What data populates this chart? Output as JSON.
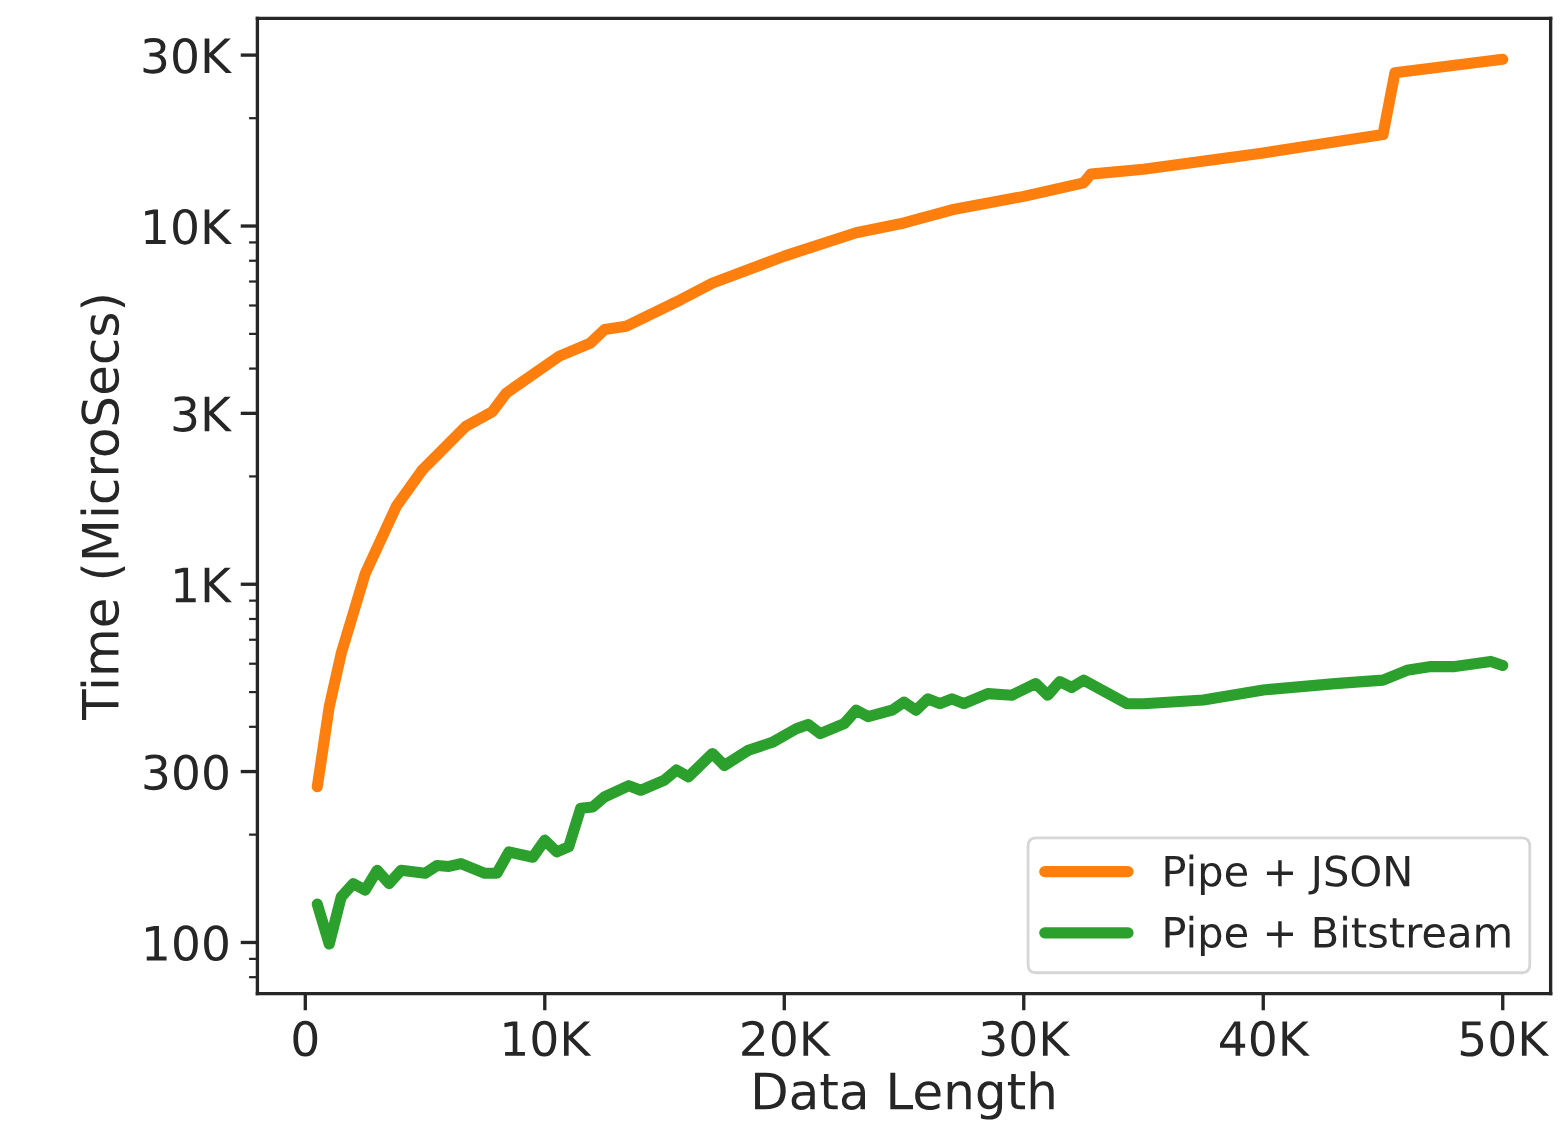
{
  "chart_data": {
    "type": "line",
    "xlabel": "Data Length",
    "ylabel": "Time (MicroSecs)",
    "log": "y",
    "grid": false,
    "legend": "bottom right",
    "xlim": [
      -2000,
      52000
    ],
    "xticks": [
      {
        "value": 0,
        "label": "0"
      },
      {
        "value": 10000,
        "label": "10K"
      },
      {
        "value": 20000,
        "label": "20K"
      },
      {
        "value": 30000,
        "label": "30K"
      },
      {
        "value": 40000,
        "label": "40K"
      },
      {
        "value": 50000,
        "label": "50K"
      }
    ],
    "ylim": [
      72,
      38000
    ],
    "yticks": [
      100,
      300,
      {
        "value": 1000,
        "label": "1K"
      },
      {
        "value": 3000,
        "label": "3K"
      },
      {
        "value": 10000,
        "label": "10K"
      },
      {
        "value": 30000,
        "label": "30K"
      }
    ],
    "series": [
      {
        "name": "Pipe + JSON",
        "color": "#ff7f0e",
        "x": [
          500,
          1000,
          1500,
          2500,
          3800,
          4900,
          6700,
          7800,
          8400,
          10600,
          11900,
          12500,
          13400,
          15700,
          17000,
          20000,
          23000,
          25000,
          27000,
          30000,
          32500,
          32800,
          35000,
          40000,
          45000,
          45500,
          50000
        ],
        "values": [
          272,
          455,
          641,
          1070,
          1650,
          2090,
          2760,
          3030,
          3420,
          4330,
          4710,
          5140,
          5250,
          6240,
          6930,
          8240,
          9580,
          10200,
          11100,
          12100,
          13200,
          13960,
          14400,
          16000,
          18000,
          26800,
          29200
        ]
      },
      {
        "name": "Pipe + Bitstream",
        "color": "#2ca02c",
        "x": [
          500,
          1000,
          1500,
          2000,
          2500,
          3000,
          3500,
          4000,
          5000,
          5500,
          6000,
          6500,
          7500,
          8000,
          8500,
          9500,
          10000,
          10500,
          11000,
          11500,
          12000,
          12500,
          13500,
          14000,
          15000,
          15500,
          16000,
          17000,
          17500,
          18500,
          19500,
          20500,
          21000,
          21500,
          22500,
          23000,
          23500,
          24500,
          25000,
          25500,
          26000,
          26500,
          27000,
          27500,
          28500,
          29500,
          30500,
          31000,
          31500,
          32000,
          32500,
          34300,
          35000,
          37500,
          40000,
          43000,
          45000,
          46000,
          47000,
          48000,
          49500,
          50000
        ],
        "values": [
          128,
          99,
          134,
          146,
          140,
          159,
          146,
          159,
          156,
          164,
          163,
          166,
          156,
          156,
          179,
          173,
          193,
          179,
          185,
          237,
          239,
          255,
          274,
          266,
          284,
          303,
          290,
          337,
          312,
          344,
          362,
          395,
          406,
          383,
          408,
          445,
          427,
          445,
          469,
          445,
          479,
          464,
          479,
          464,
          495,
          490,
          528,
          490,
          535,
          515,
          540,
          464,
          464,
          475,
          507,
          528,
          540,
          575,
          589,
          589,
          609,
          593
        ]
      }
    ]
  }
}
